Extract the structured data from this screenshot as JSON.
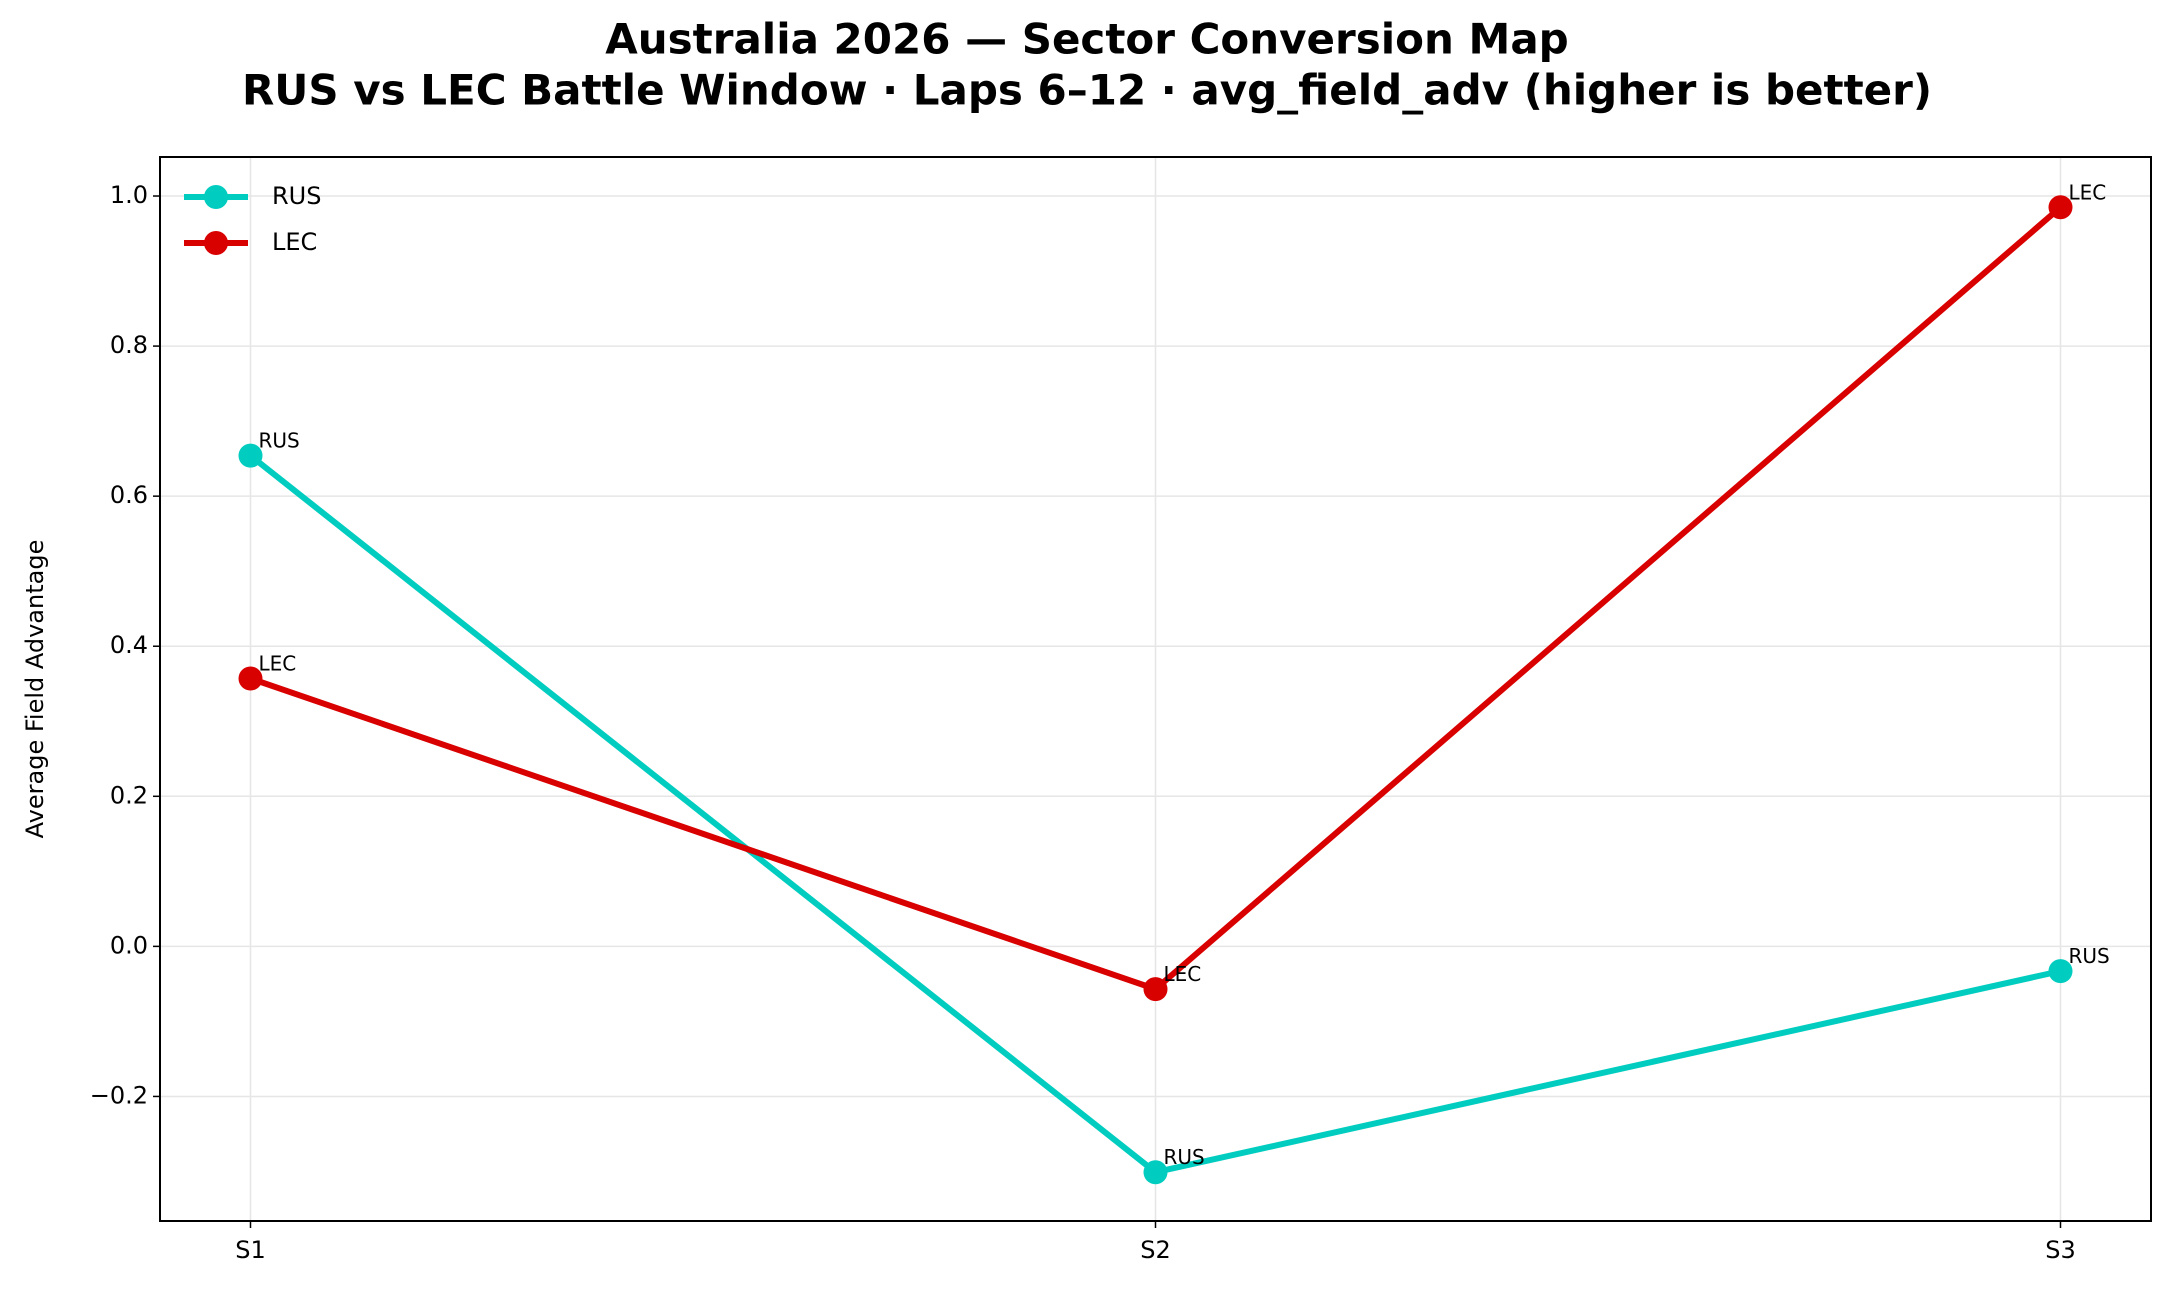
{
  "chart_data": {
    "type": "line",
    "title": "Australia 2026 — Sector Conversion Map",
    "subtitle": "RUS vs LEC Battle Window · Laps 6–12 · avg_field_adv (higher is better)",
    "y_label": "Average Field Advantage",
    "categories": [
      "S1",
      "S2",
      "S3"
    ],
    "series": [
      {
        "name": "RUS",
        "color": "#00cdbf",
        "values": [
          0.654,
          -0.301,
          -0.033
        ]
      },
      {
        "name": "LEC",
        "color": "#d90000",
        "values": [
          0.357,
          -0.057,
          0.985
        ]
      }
    ],
    "ylim": [
      -0.366,
      1.052
    ],
    "yticks": [
      {
        "value": -0.2,
        "label": "−0.2"
      },
      {
        "value": 0,
        "label": "0.0"
      },
      0.2,
      0.4,
      0.6,
      0.8,
      {
        "value": 1,
        "label": "1.0"
      }
    ],
    "grid": true,
    "legend": "upper left",
    "point_labels": true
  }
}
